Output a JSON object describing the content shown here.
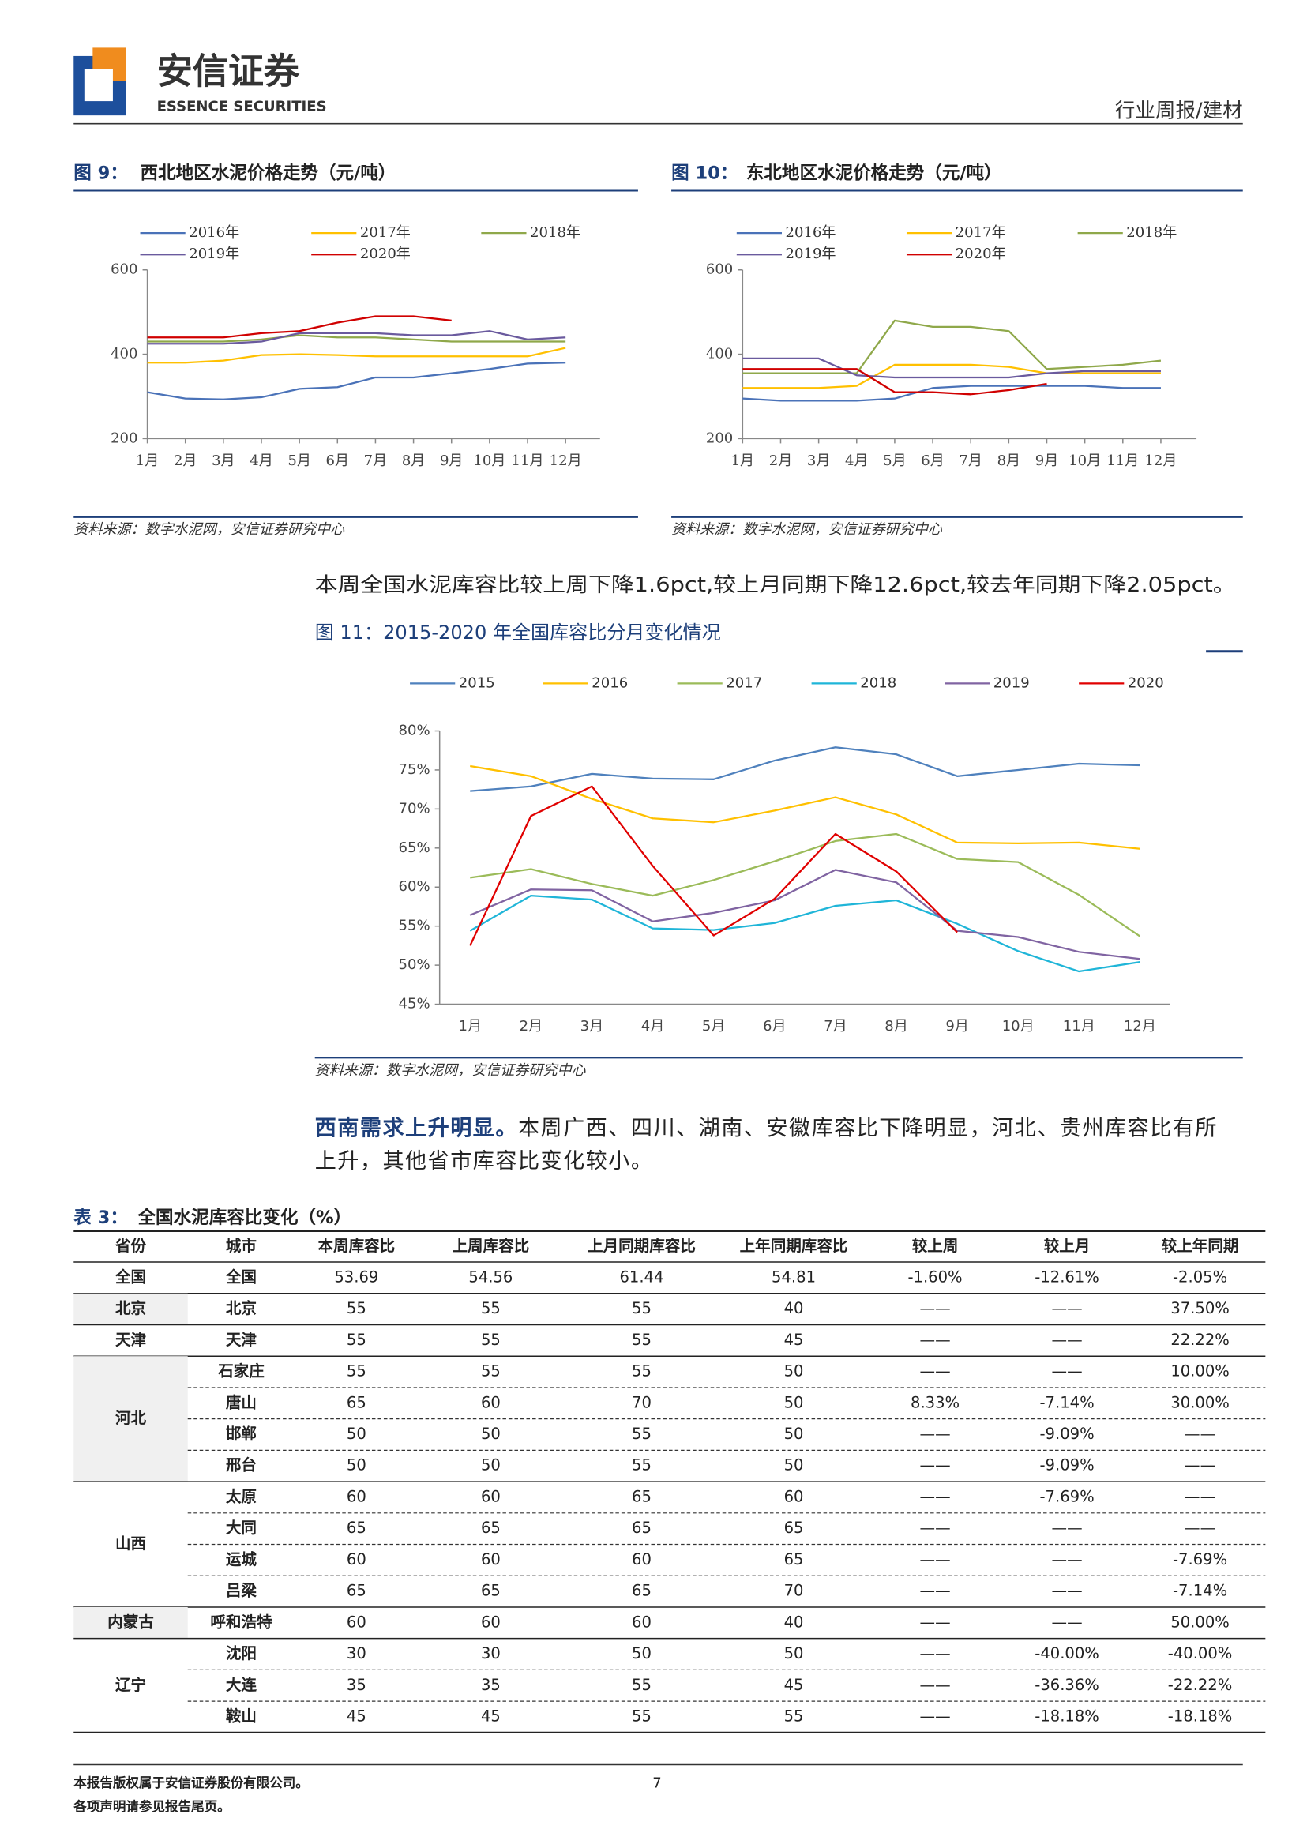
{
  "header": {
    "company": "安信证券",
    "company_en": "ESSENCE SECURITIES",
    "report_type": "行业周报/建材"
  },
  "chart_data": [
    {
      "type": "line",
      "label": "图 9：",
      "title": "西北地区水泥价格走势（元/吨）",
      "source": "资料来源：数字水泥网，安信证券研究中心",
      "categories": [
        "1月",
        "2月",
        "3月",
        "4月",
        "5月",
        "6月",
        "7月",
        "8月",
        "9月",
        "10月",
        "11月",
        "12月"
      ],
      "ylim": [
        200,
        600
      ],
      "yticks": [
        200,
        400,
        600
      ],
      "series": [
        {
          "name": "2016年",
          "color": "#4a72b8",
          "values": [
            310,
            295,
            293,
            298,
            318,
            322,
            345,
            345,
            355,
            365,
            378,
            380
          ]
        },
        {
          "name": "2017年",
          "color": "#ffc000",
          "values": [
            380,
            380,
            385,
            398,
            400,
            398,
            395,
            395,
            395,
            395,
            395,
            415
          ]
        },
        {
          "name": "2018年",
          "color": "#8fa84a",
          "values": [
            430,
            430,
            430,
            435,
            445,
            440,
            440,
            435,
            430,
            430,
            430,
            430
          ]
        },
        {
          "name": "2019年",
          "color": "#6a5a9e",
          "values": [
            425,
            425,
            425,
            430,
            450,
            450,
            450,
            445,
            445,
            455,
            435,
            440
          ]
        },
        {
          "name": "2020年",
          "color": "#d00000",
          "values": [
            440,
            440,
            440,
            450,
            455,
            475,
            490,
            490,
            480,
            null,
            null,
            null
          ]
        }
      ]
    },
    {
      "type": "line",
      "label": "图 10：",
      "title": "东北地区水泥价格走势（元/吨）",
      "source": "资料来源：数字水泥网，安信证券研究中心",
      "categories": [
        "1月",
        "2月",
        "3月",
        "4月",
        "5月",
        "6月",
        "7月",
        "8月",
        "9月",
        "10月",
        "11月",
        "12月"
      ],
      "ylim": [
        200,
        600
      ],
      "yticks": [
        200,
        400,
        600
      ],
      "series": [
        {
          "name": "2016年",
          "color": "#4a72b8",
          "values": [
            295,
            290,
            290,
            290,
            295,
            320,
            325,
            325,
            325,
            325,
            320,
            320
          ]
        },
        {
          "name": "2017年",
          "color": "#ffc000",
          "values": [
            320,
            320,
            320,
            325,
            375,
            375,
            375,
            370,
            355,
            355,
            355,
            355
          ]
        },
        {
          "name": "2018年",
          "color": "#8fa84a",
          "values": [
            355,
            355,
            355,
            355,
            480,
            465,
            465,
            455,
            365,
            370,
            375,
            385
          ]
        },
        {
          "name": "2019年",
          "color": "#6a5a9e",
          "values": [
            390,
            390,
            390,
            350,
            345,
            345,
            345,
            345,
            355,
            360,
            360,
            360
          ]
        },
        {
          "name": "2020年",
          "color": "#d00000",
          "values": [
            365,
            365,
            365,
            365,
            310,
            310,
            305,
            315,
            330,
            null,
            null,
            null
          ]
        }
      ]
    },
    {
      "type": "line",
      "title": "图 11：2015-2020 年全国库容比分月变化情况",
      "source": "资料来源：数字水泥网，安信证券研究中心",
      "categories": [
        "1月",
        "2月",
        "3月",
        "4月",
        "5月",
        "6月",
        "7月",
        "8月",
        "9月",
        "10月",
        "11月",
        "12月"
      ],
      "ylim": [
        45,
        80
      ],
      "yticks": [
        {
          "value": 45,
          "label": "45%"
        },
        {
          "value": 50,
          "label": "50%"
        },
        {
          "value": 55,
          "label": "55%"
        },
        {
          "value": 60,
          "label": "60%"
        },
        {
          "value": 65,
          "label": "65%"
        },
        {
          "value": 70,
          "label": "70%"
        },
        {
          "value": 75,
          "label": "75%"
        },
        {
          "value": 80,
          "label": "80%"
        }
      ],
      "series": [
        {
          "name": "2015",
          "color": "#4f81bd",
          "values": [
            72.3,
            72.9,
            74.5,
            73.9,
            73.8,
            76.2,
            77.9,
            77.0,
            74.2,
            75.0,
            75.8,
            75.6
          ]
        },
        {
          "name": "2016",
          "color": "#ffc000",
          "values": [
            75.5,
            74.2,
            71.3,
            68.8,
            68.3,
            69.8,
            71.5,
            69.3,
            65.7,
            65.6,
            65.7,
            64.9
          ]
        },
        {
          "name": "2017",
          "color": "#9bbb59",
          "values": [
            61.2,
            62.3,
            60.4,
            58.9,
            60.9,
            63.3,
            65.9,
            66.8,
            63.6,
            63.2,
            59.0,
            53.7
          ]
        },
        {
          "name": "2018",
          "color": "#1fb5d8",
          "values": [
            54.4,
            58.9,
            58.4,
            54.7,
            54.5,
            55.4,
            57.6,
            58.3,
            55.3,
            51.8,
            49.2,
            50.4
          ]
        },
        {
          "name": "2019",
          "color": "#8064a2",
          "values": [
            56.4,
            59.7,
            59.6,
            55.6,
            56.7,
            58.3,
            62.2,
            60.6,
            54.4,
            53.6,
            51.7,
            50.8
          ]
        },
        {
          "name": "2020",
          "color": "#e00000",
          "values": [
            52.5,
            69.1,
            72.9,
            62.7,
            53.8,
            58.5,
            66.8,
            62.0,
            54.2,
            null,
            null,
            null
          ]
        }
      ]
    }
  ],
  "paragraphs": [
    {
      "text": "本周全国水泥库容比较上周下降1.6pct,较上月同期下降12.6pct,较去年同期下降2.05pct。"
    },
    {
      "lead": "西南需求上升明显。",
      "lines": [
        "本周广西、四川、湖南、安徽库容比下降明显，河北、贵州库容比有所",
        "上升，其他省市库容比变化较小。"
      ]
    }
  ],
  "table": {
    "label": "表 3：",
    "title": "全国水泥库容比变化（%）",
    "columns": [
      "省份",
      "城市",
      "本周库容比",
      "上周库容比",
      "上月同期库容比",
      "上年同期库容比",
      "较上周",
      "较上月",
      "较上年同期"
    ],
    "groups": [
      {
        "province": "全国",
        "rows": [
          [
            "全国",
            "53.69",
            "54.56",
            "61.44",
            "54.81",
            "-1.60%",
            "-12.61%",
            "-2.05%"
          ]
        ]
      },
      {
        "province": "北京",
        "rows": [
          [
            "北京",
            "55",
            "55",
            "55",
            "40",
            "——",
            "——",
            "37.50%"
          ]
        ]
      },
      {
        "province": "天津",
        "rows": [
          [
            "天津",
            "55",
            "55",
            "55",
            "45",
            "——",
            "——",
            "22.22%"
          ]
        ]
      },
      {
        "province": "河北",
        "rows": [
          [
            "石家庄",
            "55",
            "55",
            "55",
            "50",
            "——",
            "——",
            "10.00%"
          ],
          [
            "唐山",
            "65",
            "60",
            "70",
            "50",
            "8.33%",
            "-7.14%",
            "30.00%"
          ],
          [
            "邯郸",
            "50",
            "50",
            "55",
            "50",
            "——",
            "-9.09%",
            "——"
          ],
          [
            "邢台",
            "50",
            "50",
            "55",
            "50",
            "——",
            "-9.09%",
            "——"
          ]
        ]
      },
      {
        "province": "山西",
        "rows": [
          [
            "太原",
            "60",
            "60",
            "65",
            "60",
            "——",
            "-7.69%",
            "——"
          ],
          [
            "大同",
            "65",
            "65",
            "65",
            "65",
            "——",
            "——",
            "——"
          ],
          [
            "运城",
            "60",
            "60",
            "60",
            "65",
            "——",
            "——",
            "-7.69%"
          ],
          [
            "吕梁",
            "65",
            "65",
            "65",
            "70",
            "——",
            "——",
            "-7.14%"
          ]
        ]
      },
      {
        "province": "内蒙古",
        "rows": [
          [
            "呼和浩特",
            "60",
            "60",
            "60",
            "40",
            "——",
            "——",
            "50.00%"
          ]
        ]
      },
      {
        "province": "辽宁",
        "rows": [
          [
            "沈阳",
            "30",
            "30",
            "50",
            "50",
            "——",
            "-40.00%",
            "-40.00%"
          ],
          [
            "大连",
            "35",
            "35",
            "55",
            "45",
            "——",
            "-36.36%",
            "-22.22%"
          ],
          [
            "鞍山",
            "45",
            "45",
            "55",
            "55",
            "——",
            "-18.18%",
            "-18.18%"
          ]
        ]
      }
    ]
  },
  "footer": {
    "copyright": "本报告版权属于安信证券股份有限公司。",
    "notice": "各项声明请参见报告尾页。",
    "page": "7"
  }
}
